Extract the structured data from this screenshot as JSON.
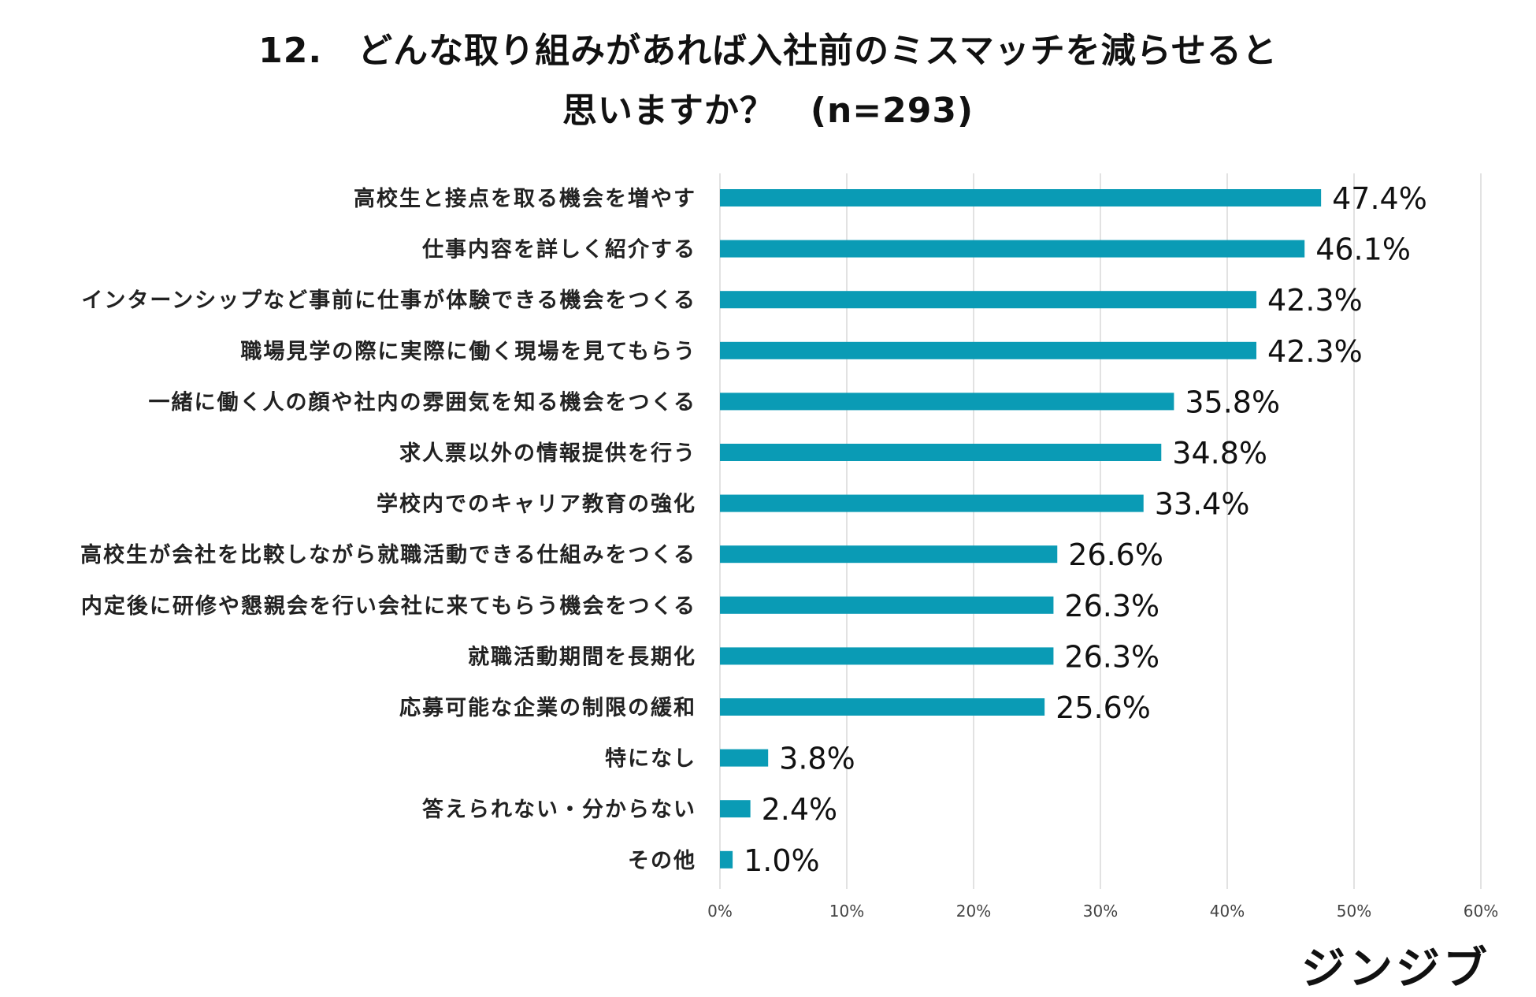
{
  "title": {
    "line1": "12.　どんな取り組みがあれば入社前のミスマッチを減らせると",
    "line2": "思いますか？　(n=293)"
  },
  "logo_text": "ジンジブ",
  "chart_data": {
    "type": "bar",
    "orientation": "horizontal",
    "title": "12.　どんな取り組みがあれば入社前のミスマッチを減らせると思いますか？　(n=293)",
    "xlabel": "",
    "ylabel": "",
    "xlim": [
      0,
      60
    ],
    "grid": true,
    "bar_color": "#0a9bb5",
    "grid_color": "#d9d9d9",
    "ticks": [
      "0%",
      "10%",
      "20%",
      "30%",
      "40%",
      "50%",
      "60%"
    ],
    "tick_values": [
      0,
      10,
      20,
      30,
      40,
      50,
      60
    ],
    "categories": [
      "高校生と接点を取る機会を増やす",
      "仕事内容を詳しく紹介する",
      "インターンシップなど事前に仕事が体験できる機会をつくる",
      "職場見学の際に実際に働く現場を見てもらう",
      "一緒に働く人の顔や社内の雰囲気を知る機会をつくる",
      "求人票以外の情報提供を行う",
      "学校内でのキャリア教育の強化",
      "高校生が会社を比較しながら就職活動できる仕組みをつくる",
      "内定後に研修や懇親会を行い会社に来てもらう機会をつくる",
      "就職活動期間を長期化",
      "応募可能な企業の制限の緩和",
      "特になし",
      "答えられない・分からない",
      "その他"
    ],
    "values": [
      47.4,
      46.1,
      42.3,
      42.3,
      35.8,
      34.8,
      33.4,
      26.6,
      26.3,
      26.3,
      25.6,
      3.8,
      2.4,
      1.0
    ],
    "value_labels": [
      "47.4%",
      "46.1%",
      "42.3%",
      "42.3%",
      "35.8%",
      "34.8%",
      "33.4%",
      "26.6%",
      "26.3%",
      "26.3%",
      "25.6%",
      "3.8%",
      "2.4%",
      "1.0%"
    ]
  }
}
